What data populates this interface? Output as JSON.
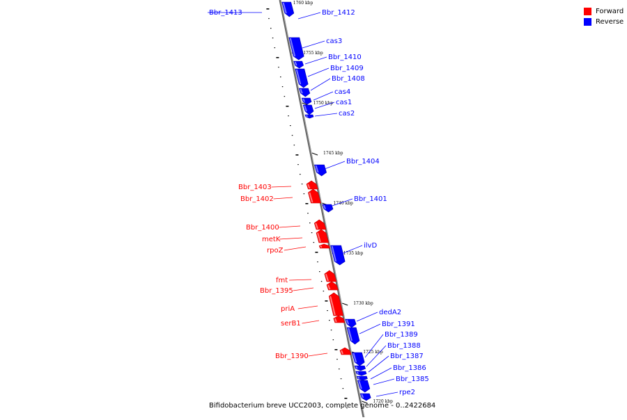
{
  "legend": {
    "forward_label": "Forward",
    "reverse_label": "Reverse",
    "forward_color": "#ff0000",
    "reverse_color": "#0000ff"
  },
  "caption": "Bifidobacterium breve UCC2003, complete genome - 0..2422684",
  "axis": {
    "ticks": [
      {
        "label": "1760 kbp",
        "pos_kbp": 1760
      },
      {
        "label": "1755 kbp",
        "pos_kbp": 1755
      },
      {
        "label": "1750 kbp",
        "pos_kbp": 1750
      },
      {
        "label": "1745 kbp",
        "pos_kbp": 1745
      },
      {
        "label": "1740 kbp",
        "pos_kbp": 1740
      },
      {
        "label": "1735 kbp",
        "pos_kbp": 1735
      },
      {
        "label": "1730 kbp",
        "pos_kbp": 1730
      },
      {
        "label": "1725 kbp",
        "pos_kbp": 1725
      },
      {
        "label": "1720 kbp",
        "pos_kbp": 1720
      }
    ]
  },
  "genes": [
    {
      "name": "Bbr_1413",
      "strand": "reverse"
    },
    {
      "name": "Bbr_1412",
      "strand": "reverse"
    },
    {
      "name": "cas3",
      "strand": "reverse"
    },
    {
      "name": "Bbr_1410",
      "strand": "reverse"
    },
    {
      "name": "Bbr_1409",
      "strand": "reverse"
    },
    {
      "name": "Bbr_1408",
      "strand": "reverse"
    },
    {
      "name": "cas4",
      "strand": "reverse"
    },
    {
      "name": "cas1",
      "strand": "reverse"
    },
    {
      "name": "cas2",
      "strand": "reverse"
    },
    {
      "name": "Bbr_1404",
      "strand": "reverse"
    },
    {
      "name": "Bbr_1403",
      "strand": "forward"
    },
    {
      "name": "Bbr_1402",
      "strand": "forward"
    },
    {
      "name": "Bbr_1401",
      "strand": "reverse"
    },
    {
      "name": "Bbr_1400",
      "strand": "forward"
    },
    {
      "name": "metK",
      "strand": "forward"
    },
    {
      "name": "rpoZ",
      "strand": "forward"
    },
    {
      "name": "ilvD",
      "strand": "reverse"
    },
    {
      "name": "fmt",
      "strand": "forward"
    },
    {
      "name": "Bbr_1395",
      "strand": "forward"
    },
    {
      "name": "priA",
      "strand": "forward"
    },
    {
      "name": "serB1",
      "strand": "forward"
    },
    {
      "name": "dedA2",
      "strand": "reverse"
    },
    {
      "name": "Bbr_1391",
      "strand": "reverse"
    },
    {
      "name": "Bbr_1389",
      "strand": "reverse"
    },
    {
      "name": "Bbr_1388",
      "strand": "reverse"
    },
    {
      "name": "Bbr_1387",
      "strand": "reverse"
    },
    {
      "name": "Bbr_1390",
      "strand": "forward"
    },
    {
      "name": "Bbr_1386",
      "strand": "reverse"
    },
    {
      "name": "Bbr_1385",
      "strand": "reverse"
    },
    {
      "name": "rpe2",
      "strand": "reverse"
    }
  ]
}
